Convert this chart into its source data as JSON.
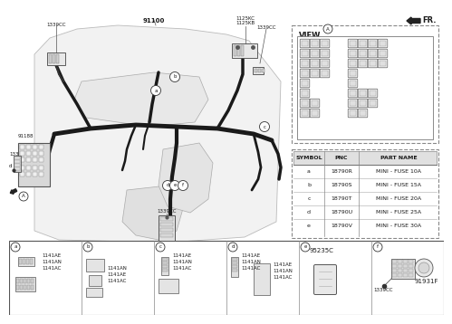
{
  "bg_color": "#ffffff",
  "text_color": "#1a1a1a",
  "fr_label": "FR.",
  "main_label": "91100",
  "top_left_label": "1339CC",
  "top_right_label1": "1125KC",
  "top_right_label2": "1125KB",
  "top_right_label3": "1339CC",
  "side_label1": "91188",
  "side_label2": "1339CC",
  "bottom_mid_label": "1339CC",
  "view_title": "VIEW",
  "symbol_headers": [
    "SYMBOL",
    "PNC",
    "PART NAME"
  ],
  "symbol_rows": [
    [
      "a",
      "18790R",
      "MINI - FUSE 10A"
    ],
    [
      "b",
      "18790S",
      "MINI - FUSE 15A"
    ],
    [
      "c",
      "18790T",
      "MINI - FUSE 20A"
    ],
    [
      "d",
      "18790U",
      "MINI - FUSE 25A"
    ],
    [
      "e",
      "18790V",
      "MINI - FUSE 30A"
    ]
  ],
  "bottom_sections": [
    "a",
    "b",
    "c",
    "d",
    "e",
    "f"
  ],
  "sec_a_labels": [
    "1141AE",
    "1141AN",
    "1141AC"
  ],
  "sec_b_labels": [
    "1141AN",
    "1141AE",
    "1141AC"
  ],
  "sec_c_labels": [
    "1141AE",
    "1141AN",
    "1141AC"
  ],
  "sec_d_labels_r": [
    "1141AE",
    "1141AN",
    "1141AC"
  ],
  "sec_d_labels_l": [
    "1141AE",
    "1141AN",
    "1141AC"
  ],
  "sec_e_label": "95235C",
  "sec_f_labels": [
    "1339CC",
    "91931F"
  ],
  "dashed_color": "#888888",
  "fuse_fill": "#eeeeee",
  "fuse_edge": "#666666"
}
